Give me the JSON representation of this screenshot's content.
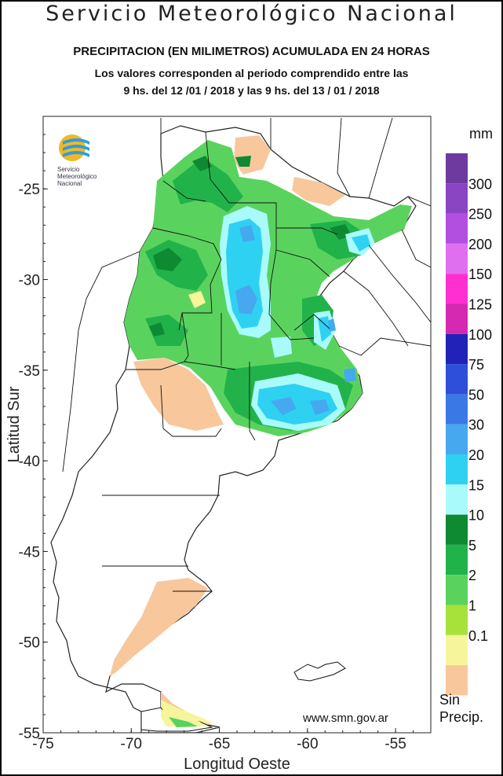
{
  "header": {
    "title": "Servicio Meteorológico Nacional",
    "subtitle": "PRECIPITACION (EN MILIMETROS) ACUMULADA EN 24 HORAS",
    "period_line1": "Los valores corresponden al periodo comprendido entre las",
    "period_line2": "9 hs. del 12 /01 / 2018  y las 9 hs. del 13 / 01 / 2018"
  },
  "map": {
    "ylabel": "Latitud Sur",
    "xlabel": "Longitud Oeste",
    "x_ticks": [
      "-75",
      "-70",
      "-65",
      "-60",
      "-55"
    ],
    "y_ticks": [
      "-25",
      "-30",
      "-35",
      "-40",
      "-45",
      "-50",
      "-55"
    ],
    "lon_range": [
      -75,
      -53
    ],
    "lat_range": [
      -55,
      -21
    ],
    "url": "www.smn.gov.ar"
  },
  "logo": {
    "line1": "Servicio",
    "line2": "Meteorológico",
    "line3": "Nacional"
  },
  "legend": {
    "unit": "mm",
    "none_label_line1": "Sin",
    "none_label_line2": "Precip.",
    "bins": [
      {
        "label": "",
        "color": "#6e3a9f"
      },
      {
        "label": "300",
        "color": "#8a45c2"
      },
      {
        "label": "250",
        "color": "#b24fe0"
      },
      {
        "label": "200",
        "color": "#e06ff0"
      },
      {
        "label": "150",
        "color": "#ff2fd0"
      },
      {
        "label": "125",
        "color": "#d429b0"
      },
      {
        "label": "100",
        "color": "#2222b8"
      },
      {
        "label": "75",
        "color": "#2e4fd9"
      },
      {
        "label": "50",
        "color": "#3a78e6"
      },
      {
        "label": "30",
        "color": "#46a8ee"
      },
      {
        "label": "20",
        "color": "#2fd1f2"
      },
      {
        "label": "15",
        "color": "#a9fbfb"
      },
      {
        "label": "10",
        "color": "#0d8a32"
      },
      {
        "label": "5",
        "color": "#21b34a"
      },
      {
        "label": "2",
        "color": "#5ad35e"
      },
      {
        "label": "1",
        "color": "#a6e23a"
      },
      {
        "label": "0.1",
        "color": "#f6f59c"
      },
      {
        "label": "",
        "color": "#f8c79c"
      }
    ]
  }
}
